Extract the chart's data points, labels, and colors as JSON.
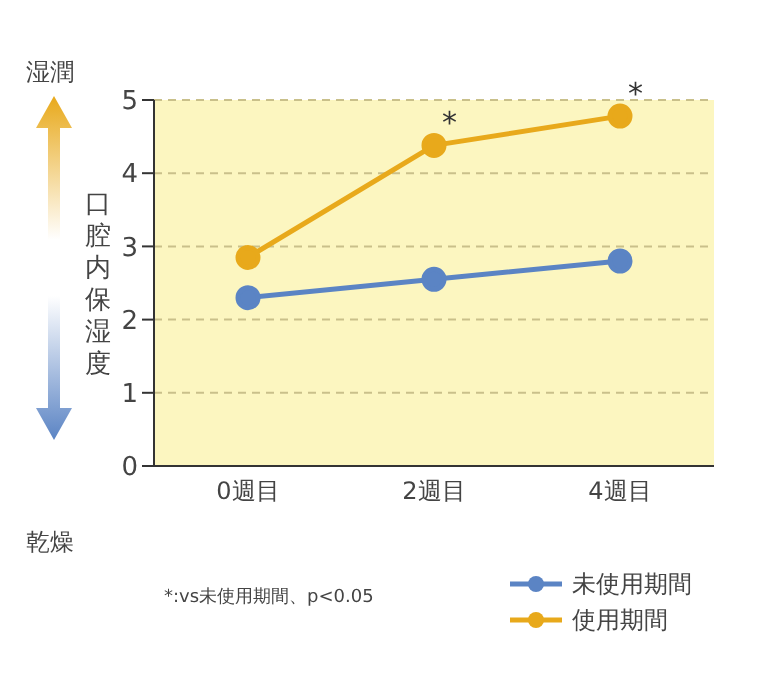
{
  "chart_data": {
    "type": "line",
    "ylabel": "口腔内保湿度",
    "categories": [
      "0週目",
      "2週目",
      "4週目"
    ],
    "series": [
      {
        "name": "未使用期間",
        "color": "#5b84c4",
        "values": [
          2.3,
          2.55,
          2.8
        ]
      },
      {
        "name": "使用期間",
        "color": "#e8a91b",
        "values": [
          2.85,
          4.38,
          4.78
        ]
      }
    ],
    "ylim": [
      0,
      5
    ],
    "yticks": [
      0,
      1,
      2,
      3,
      4,
      5
    ],
    "grid": "y",
    "legend": "bottom right",
    "marker": "circle",
    "line_style": "solid",
    "annotations": [
      {
        "text": "*",
        "x": "2週目",
        "y": 4.38
      },
      {
        "text": "*",
        "x": "4週目",
        "y": 4.78
      },
      "湿潤",
      "乾燥",
      "*:vs未使用期間、p<0.05"
    ]
  }
}
